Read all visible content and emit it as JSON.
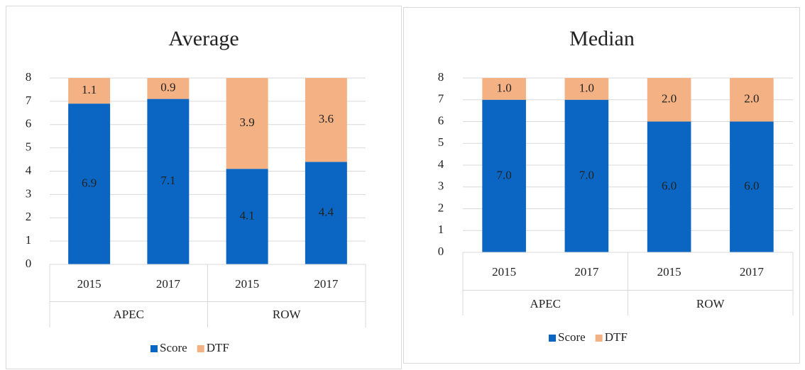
{
  "chart_data": [
    {
      "type": "stacked_bar",
      "title": "Average",
      "categories": [
        "2015",
        "2017",
        "2015",
        "2017"
      ],
      "groups": [
        "APEC",
        "ROW"
      ],
      "series": [
        {
          "name": "Score",
          "color": "#0a66c2",
          "values": [
            6.9,
            7.1,
            4.1,
            4.4
          ]
        },
        {
          "name": "DTF",
          "color": "#f4b183",
          "values": [
            1.1,
            0.9,
            3.9,
            3.6
          ]
        }
      ],
      "ylim": [
        0,
        8
      ],
      "yticks": [
        0,
        1,
        2,
        3,
        4,
        5,
        6,
        7,
        8
      ],
      "grid": true,
      "legend": "bottom"
    },
    {
      "type": "stacked_bar",
      "title": "Median",
      "categories": [
        "2015",
        "2017",
        "2015",
        "2017"
      ],
      "groups": [
        "APEC",
        "ROW"
      ],
      "series": [
        {
          "name": "Score",
          "color": "#0a66c2",
          "values": [
            7,
            7,
            6,
            6
          ],
          "value_labels": [
            "7.0",
            "7.0",
            "6.0",
            "6.0"
          ]
        },
        {
          "name": "DTF",
          "color": "#f4b183",
          "values": [
            1,
            1,
            2,
            2
          ],
          "value_labels": [
            "1.0",
            "1.0",
            "2.0",
            "2.0"
          ]
        }
      ],
      "ylim": [
        0,
        8
      ],
      "yticks": [
        0,
        1,
        2,
        3,
        4,
        5,
        6,
        7,
        8
      ],
      "grid": true,
      "legend": "bottom"
    }
  ]
}
